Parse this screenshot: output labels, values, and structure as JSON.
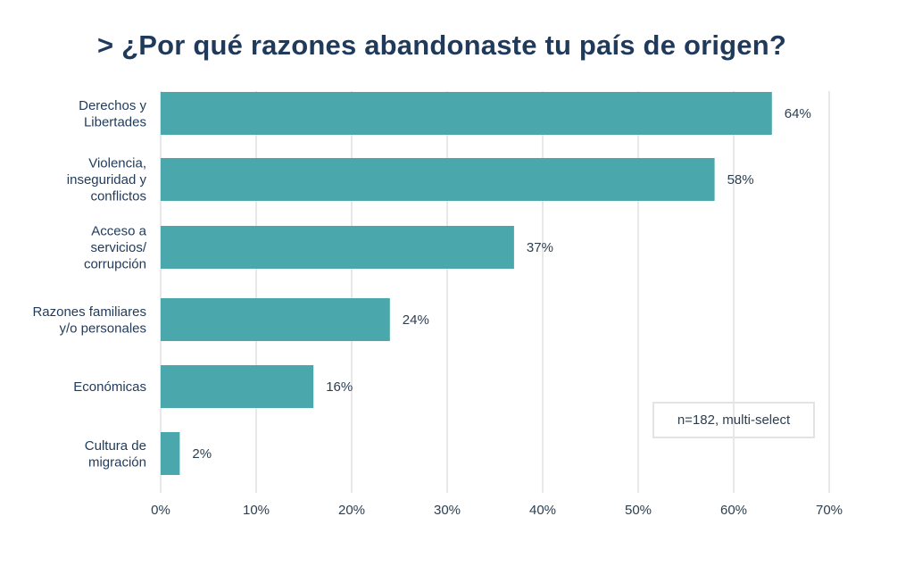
{
  "title": "> ¿Por qué razones abandonaste tu país de origen?",
  "note": "n=182, multi-select",
  "colors": {
    "bar": "#4aa7ab",
    "grid": "#e0e0e0",
    "text": "#1f3a5b"
  },
  "chart_data": {
    "type": "bar",
    "orientation": "horizontal",
    "title": "> ¿Por qué razones abandonaste tu país de origen?",
    "categories": [
      [
        "Derechos y",
        "Libertades"
      ],
      [
        "Violencia,",
        "inseguridad y",
        "conflictos"
      ],
      [
        "Acceso a",
        "servicios/",
        "corrupción"
      ],
      [
        "Razones familiares",
        "y/o personales"
      ],
      [
        "Económicas"
      ],
      [
        "Cultura de",
        "migración"
      ]
    ],
    "values": [
      64,
      58,
      37,
      24,
      16,
      2
    ],
    "value_labels": [
      "64%",
      "58%",
      "37%",
      "24%",
      "16%",
      "2%"
    ],
    "xlim": [
      0,
      70
    ],
    "xticks": [
      0,
      10,
      20,
      30,
      40,
      50,
      60,
      70
    ],
    "xtick_labels": [
      "0%",
      "10%",
      "20%",
      "30%",
      "40%",
      "50%",
      "60%",
      "70%"
    ],
    "grid": "vertical",
    "legend": "none"
  }
}
